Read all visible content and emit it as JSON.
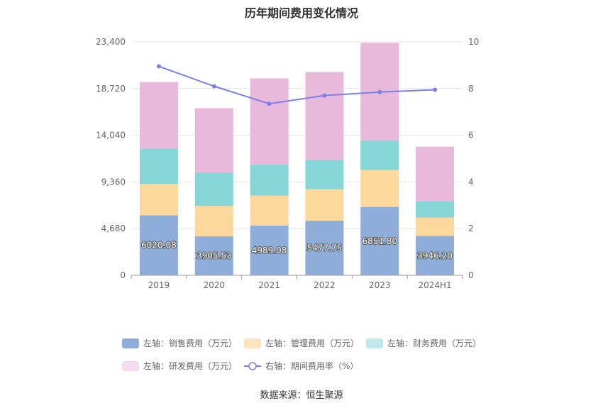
{
  "chart_data": {
    "type": "bar",
    "title": "历年期间费用变化情况",
    "categories": [
      "2019",
      "2020",
      "2021",
      "2022",
      "2023",
      "2024H1"
    ],
    "left_axis": {
      "ticks": [
        "0",
        "4,680",
        "9,360",
        "14,040",
        "18,720",
        "23,400"
      ],
      "ylim": [
        0,
        23400
      ]
    },
    "right_axis": {
      "ticks": [
        "0",
        "2",
        "4",
        "6",
        "8",
        "10"
      ],
      "ylim": [
        0,
        10
      ]
    },
    "stacked": true,
    "series": [
      {
        "name": "左轴：销售费用（万元）",
        "axis": "left",
        "type": "bar",
        "color": "#8eadd9",
        "values": [
          6020.08,
          3905.53,
          4989.08,
          5477.75,
          6851.8,
          3946.2
        ],
        "labels": [
          "6020.08",
          "3905.53",
          "4989.08",
          "5477.75",
          "6851.80",
          "3946.20"
        ]
      },
      {
        "name": "左轴：管理费用（万元）",
        "axis": "left",
        "type": "bar",
        "color": "#fdd89c",
        "values": [
          3150,
          3050,
          3000,
          3150,
          3700,
          1850
        ]
      },
      {
        "name": "左轴：财务费用（万元）",
        "axis": "left",
        "type": "bar",
        "color": "#86d6d8",
        "values": [
          3550,
          3350,
          3100,
          2950,
          2950,
          1650
        ]
      },
      {
        "name": "左轴：研发费用（万元）",
        "axis": "left",
        "type": "bar",
        "color": "#e8b9da",
        "values": [
          6650,
          6450,
          8650,
          8800,
          9800,
          5450
        ]
      },
      {
        "name": "右轴：期间费用率（%）",
        "axis": "right",
        "type": "line",
        "color": "#7b7fe8",
        "values": [
          8.95,
          8.1,
          7.35,
          7.7,
          7.85,
          7.95
        ]
      }
    ],
    "legend_position": "bottom",
    "grid": true
  },
  "legend": [
    {
      "label": "左轴：销售费用（万元）",
      "color": "#8eadd9",
      "kind": "swatch"
    },
    {
      "label": "左轴：管理费用（万元）",
      "color": "#fde3bf",
      "kind": "swatch"
    },
    {
      "label": "左轴：财务费用（万元）",
      "color": "#bfe9ea",
      "kind": "swatch"
    },
    {
      "label": "左轴：研发费用（万元）",
      "color": "#f3dced",
      "kind": "swatch"
    },
    {
      "label": "右轴：期间费用率（%）",
      "color": "#7b7fe8",
      "kind": "line"
    }
  ],
  "source": "数据来源：恒生聚源"
}
